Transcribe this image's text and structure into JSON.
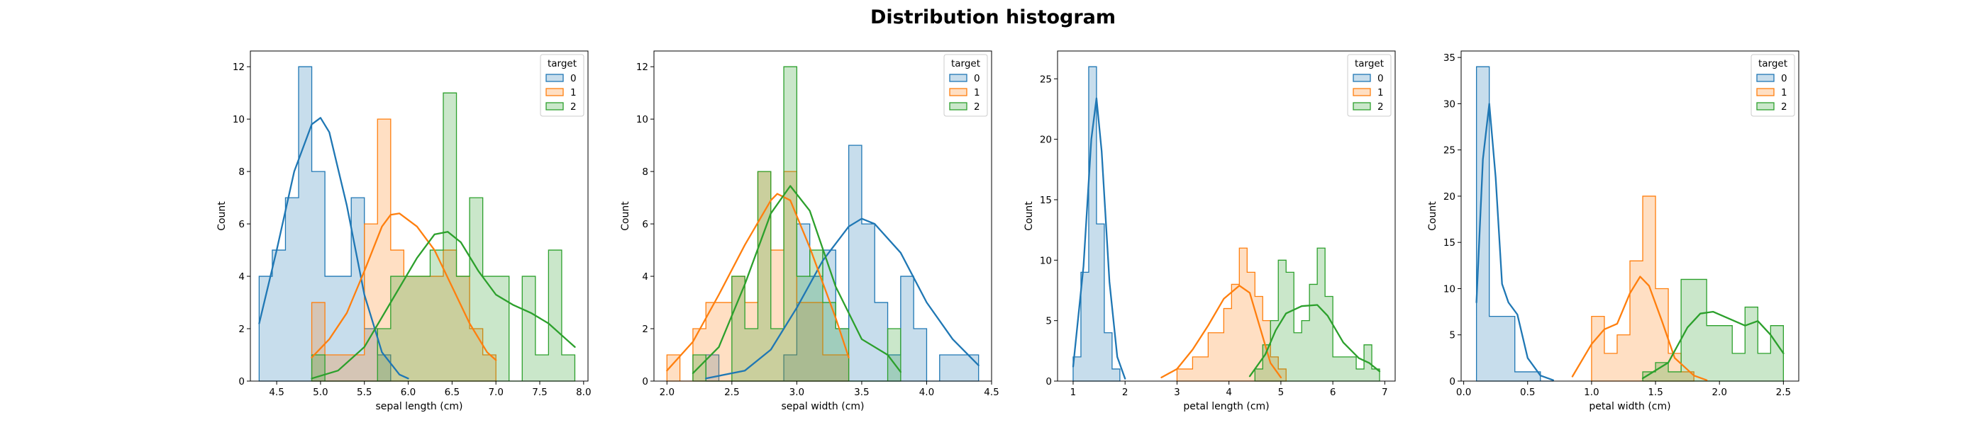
{
  "figure_title": "Distribution histogram",
  "colors": {
    "0": "#1f77b4",
    "1": "#ff7f0e",
    "2": "#2ca02c"
  },
  "chart_data": [
    {
      "type": "histogram",
      "xlabel": "sepal length (cm)",
      "ylabel": "Count",
      "xlim": [
        4.2,
        8.05
      ],
      "ylim": [
        0,
        12.6
      ],
      "xticks": [
        4.5,
        5.0,
        5.5,
        6.0,
        6.5,
        7.0,
        7.5,
        8.0
      ],
      "xtick_labels": [
        "4.5",
        "5.0",
        "5.5",
        "6.0",
        "6.5",
        "7.0",
        "7.5",
        "8.0"
      ],
      "yticks": [
        0,
        2,
        4,
        6,
        8,
        10,
        12
      ],
      "ytick_labels": [
        "0",
        "2",
        "4",
        "6",
        "8",
        "10",
        "12"
      ],
      "legend_title": "target",
      "legend_entries": [
        "0",
        "1",
        "2"
      ],
      "legend_position": "top-right",
      "series": [
        {
          "name": "0",
          "bins": [
            4.3,
            4.45,
            4.6,
            4.75,
            4.9,
            5.05,
            5.2,
            5.35,
            5.5,
            5.65,
            5.8
          ],
          "counts": [
            4,
            5,
            7,
            12,
            8,
            4,
            4,
            7,
            2,
            1
          ],
          "kde": [
            [
              4.3,
              2.2
            ],
            [
              4.5,
              5.0
            ],
            [
              4.7,
              8.0
            ],
            [
              4.9,
              9.8
            ],
            [
              5.0,
              10.05
            ],
            [
              5.1,
              9.5
            ],
            [
              5.3,
              6.7
            ],
            [
              5.5,
              3.3
            ],
            [
              5.7,
              1.1
            ],
            [
              5.9,
              0.25
            ],
            [
              6.0,
              0.1
            ]
          ]
        },
        {
          "name": "1",
          "bins": [
            4.9,
            5.05,
            5.2,
            5.35,
            5.5,
            5.65,
            5.8,
            5.95,
            6.1,
            6.25,
            6.4,
            6.55,
            6.7,
            6.85,
            7.0
          ],
          "counts": [
            3,
            1,
            1,
            1,
            6,
            10,
            5,
            4,
            4,
            4,
            5,
            4,
            2,
            1
          ],
          "kde": [
            [
              4.9,
              0.9
            ],
            [
              5.1,
              1.6
            ],
            [
              5.3,
              2.6
            ],
            [
              5.5,
              4.2
            ],
            [
              5.7,
              5.9
            ],
            [
              5.8,
              6.35
            ],
            [
              5.9,
              6.4
            ],
            [
              6.1,
              5.9
            ],
            [
              6.3,
              5.0
            ],
            [
              6.5,
              3.6
            ],
            [
              6.7,
              2.2
            ],
            [
              6.9,
              1.1
            ],
            [
              7.0,
              0.8
            ]
          ]
        },
        {
          "name": "2",
          "bins": [
            4.9,
            5.05,
            5.2,
            5.35,
            5.5,
            5.65,
            5.8,
            5.95,
            6.1,
            6.25,
            6.4,
            6.55,
            6.7,
            6.85,
            7.0,
            7.15,
            7.3,
            7.45,
            7.6,
            7.75,
            7.9
          ],
          "counts": [
            1,
            0,
            0,
            0,
            0,
            2,
            4,
            4,
            4,
            5,
            11,
            4,
            7,
            4,
            4,
            0,
            4,
            1,
            5,
            1
          ],
          "kde": [
            [
              4.9,
              0.1
            ],
            [
              5.2,
              0.4
            ],
            [
              5.5,
              1.3
            ],
            [
              5.8,
              3.0
            ],
            [
              6.1,
              4.7
            ],
            [
              6.3,
              5.6
            ],
            [
              6.45,
              5.7
            ],
            [
              6.6,
              5.3
            ],
            [
              6.8,
              4.2
            ],
            [
              7.0,
              3.3
            ],
            [
              7.2,
              2.9
            ],
            [
              7.4,
              2.6
            ],
            [
              7.6,
              2.2
            ],
            [
              7.8,
              1.6
            ],
            [
              7.9,
              1.3
            ]
          ]
        }
      ]
    },
    {
      "type": "histogram",
      "xlabel": "sepal width (cm)",
      "ylabel": "Count",
      "xlim": [
        1.9,
        4.5
      ],
      "ylim": [
        0,
        12.6
      ],
      "xticks": [
        2.0,
        2.5,
        3.0,
        3.5,
        4.0,
        4.5
      ],
      "xtick_labels": [
        "2.0",
        "2.5",
        "3.0",
        "3.5",
        "4.0",
        "4.5"
      ],
      "yticks": [
        0,
        2,
        4,
        6,
        8,
        10,
        12
      ],
      "ytick_labels": [
        "0",
        "2",
        "4",
        "6",
        "8",
        "10",
        "12"
      ],
      "legend_title": "target",
      "legend_entries": [
        "0",
        "1",
        "2"
      ],
      "legend_position": "top-right",
      "series": [
        {
          "name": "0",
          "bins": [
            2.3,
            2.4,
            2.5,
            2.6,
            2.7,
            2.8,
            2.9,
            3.0,
            3.1,
            3.2,
            3.3,
            3.4,
            3.5,
            3.6,
            3.7,
            3.8,
            3.9,
            4.0,
            4.1,
            4.2,
            4.3,
            4.4
          ],
          "counts": [
            1,
            0,
            0,
            0,
            0,
            0,
            1,
            6,
            4,
            5,
            2,
            9,
            6,
            3,
            1,
            4,
            2,
            0,
            1,
            1,
            1
          ],
          "kde": [
            [
              2.3,
              0.1
            ],
            [
              2.6,
              0.4
            ],
            [
              2.8,
              1.2
            ],
            [
              3.0,
              2.8
            ],
            [
              3.2,
              4.6
            ],
            [
              3.4,
              5.9
            ],
            [
              3.5,
              6.2
            ],
            [
              3.6,
              6.0
            ],
            [
              3.8,
              4.9
            ],
            [
              4.0,
              3.0
            ],
            [
              4.2,
              1.6
            ],
            [
              4.4,
              0.6
            ]
          ]
        },
        {
          "name": "1",
          "bins": [
            2.0,
            2.1,
            2.2,
            2.3,
            2.4,
            2.5,
            2.6,
            2.7,
            2.8,
            2.9,
            3.0,
            3.1,
            3.2,
            3.3,
            3.4
          ],
          "counts": [
            1,
            0,
            2,
            3,
            3,
            4,
            3,
            8,
            5,
            8,
            3,
            3,
            1,
            1
          ],
          "kde": [
            [
              2.0,
              0.4
            ],
            [
              2.2,
              1.5
            ],
            [
              2.4,
              3.3
            ],
            [
              2.6,
              5.2
            ],
            [
              2.8,
              6.9
            ],
            [
              2.85,
              7.15
            ],
            [
              2.95,
              6.9
            ],
            [
              3.1,
              5.1
            ],
            [
              3.3,
              2.4
            ],
            [
              3.4,
              0.9
            ]
          ]
        },
        {
          "name": "2",
          "bins": [
            2.2,
            2.3,
            2.4,
            2.5,
            2.6,
            2.7,
            2.8,
            2.9,
            3.0,
            3.1,
            3.2,
            3.3,
            3.4,
            3.5,
            3.6,
            3.7,
            3.8
          ],
          "counts": [
            1,
            0,
            0,
            4,
            2,
            8,
            2,
            12,
            4,
            5,
            3,
            2,
            0,
            0,
            0,
            2
          ],
          "kde": [
            [
              2.2,
              0.3
            ],
            [
              2.4,
              1.3
            ],
            [
              2.6,
              3.7
            ],
            [
              2.8,
              6.4
            ],
            [
              2.95,
              7.45
            ],
            [
              3.1,
              6.5
            ],
            [
              3.3,
              3.6
            ],
            [
              3.5,
              1.6
            ],
            [
              3.7,
              1.0
            ],
            [
              3.8,
              0.35
            ]
          ]
        }
      ]
    },
    {
      "type": "histogram",
      "xlabel": "petal length (cm)",
      "ylabel": "Count",
      "xlim": [
        0.7,
        7.2
      ],
      "ylim": [
        0,
        27.3
      ],
      "xticks": [
        1,
        2,
        3,
        4,
        5,
        6,
        7
      ],
      "xtick_labels": [
        "1",
        "2",
        "3",
        "4",
        "5",
        "6",
        "7"
      ],
      "yticks": [
        0,
        5,
        10,
        15,
        20,
        25
      ],
      "ytick_labels": [
        "0",
        "5",
        "10",
        "15",
        "20",
        "25"
      ],
      "legend_title": "target",
      "legend_entries": [
        "0",
        "1",
        "2"
      ],
      "legend_position": "top-right",
      "series": [
        {
          "name": "0",
          "bins": [
            1.0,
            1.15,
            1.3,
            1.45,
            1.6,
            1.75,
            1.9
          ],
          "counts": [
            2,
            9,
            26,
            13,
            4,
            1
          ],
          "kde": [
            [
              1.0,
              1.2
            ],
            [
              1.2,
              9.5
            ],
            [
              1.35,
              20.0
            ],
            [
              1.45,
              23.4
            ],
            [
              1.55,
              19.0
            ],
            [
              1.7,
              8.2
            ],
            [
              1.85,
              2.0
            ],
            [
              2.0,
              0.2
            ]
          ]
        },
        {
          "name": "1",
          "bins": [
            3.0,
            3.3,
            3.6,
            3.9,
            4.05,
            4.2,
            4.35,
            4.5,
            4.65,
            4.8,
            4.95,
            5.1
          ],
          "counts": [
            1,
            2,
            4,
            6,
            8,
            11,
            9,
            7,
            5,
            2,
            1
          ],
          "kde": [
            [
              2.7,
              0.3
            ],
            [
              3.0,
              1.0
            ],
            [
              3.3,
              2.6
            ],
            [
              3.6,
              4.6
            ],
            [
              3.9,
              6.8
            ],
            [
              4.2,
              7.9
            ],
            [
              4.4,
              7.3
            ],
            [
              4.6,
              4.4
            ],
            [
              4.8,
              1.5
            ],
            [
              5.0,
              0.3
            ]
          ]
        },
        {
          "name": "2",
          "bins": [
            4.5,
            4.65,
            4.8,
            4.95,
            5.1,
            5.25,
            5.4,
            5.55,
            5.7,
            5.85,
            6.0,
            6.15,
            6.3,
            6.45,
            6.6,
            6.75,
            6.9
          ],
          "counts": [
            1,
            3,
            5,
            10,
            9,
            4,
            5,
            8,
            11,
            7,
            2,
            2,
            2,
            1,
            3,
            1
          ],
          "kde": [
            [
              4.4,
              0.4
            ],
            [
              4.7,
              2.2
            ],
            [
              4.9,
              4.2
            ],
            [
              5.1,
              5.6
            ],
            [
              5.4,
              6.2
            ],
            [
              5.7,
              6.3
            ],
            [
              5.9,
              5.4
            ],
            [
              6.2,
              3.2
            ],
            [
              6.5,
              1.9
            ],
            [
              6.7,
              1.5
            ],
            [
              6.9,
              0.8
            ]
          ]
        }
      ]
    },
    {
      "type": "histogram",
      "xlabel": "petal width (cm)",
      "ylabel": "Count",
      "xlim": [
        -0.02,
        2.62
      ],
      "ylim": [
        0,
        35.7
      ],
      "xticks": [
        0.0,
        0.5,
        1.0,
        1.5,
        2.0,
        2.5
      ],
      "xtick_labels": [
        "0.0",
        "0.5",
        "1.0",
        "1.5",
        "2.0",
        "2.5"
      ],
      "yticks": [
        0,
        5,
        10,
        15,
        20,
        25,
        30,
        35
      ],
      "ytick_labels": [
        "0",
        "5",
        "10",
        "15",
        "20",
        "25",
        "30",
        "35"
      ],
      "legend_title": "target",
      "legend_entries": [
        "0",
        "1",
        "2"
      ],
      "legend_position": "top-right",
      "series": [
        {
          "name": "0",
          "bins": [
            0.1,
            0.2,
            0.3,
            0.4,
            0.5,
            0.6,
            0.7
          ],
          "counts": [
            34,
            7,
            7,
            1,
            1,
            0
          ],
          "kde": [
            [
              0.1,
              8.5
            ],
            [
              0.15,
              24.0
            ],
            [
              0.2,
              30.0
            ],
            [
              0.25,
              22.0
            ],
            [
              0.3,
              10.5
            ],
            [
              0.35,
              8.5
            ],
            [
              0.42,
              7.2
            ],
            [
              0.5,
              2.5
            ],
            [
              0.6,
              0.6
            ],
            [
              0.7,
              0.1
            ]
          ]
        },
        {
          "name": "1",
          "bins": [
            1.0,
            1.1,
            1.2,
            1.3,
            1.4,
            1.5,
            1.6,
            1.7,
            1.8
          ],
          "counts": [
            7,
            3,
            5,
            13,
            20,
            10,
            3,
            1
          ],
          "kde": [
            [
              0.85,
              0.5
            ],
            [
              1.0,
              4.0
            ],
            [
              1.1,
              5.6
            ],
            [
              1.2,
              6.2
            ],
            [
              1.3,
              9.5
            ],
            [
              1.38,
              11.3
            ],
            [
              1.45,
              10.3
            ],
            [
              1.55,
              6.5
            ],
            [
              1.65,
              2.5
            ],
            [
              1.8,
              0.6
            ],
            [
              1.9,
              0.1
            ]
          ]
        },
        {
          "name": "2",
          "bins": [
            1.4,
            1.5,
            1.6,
            1.7,
            1.8,
            1.9,
            2.0,
            2.1,
            2.2,
            2.3,
            2.4,
            2.5
          ],
          "counts": [
            1,
            2,
            1,
            11,
            11,
            6,
            6,
            3,
            8,
            3,
            6
          ],
          "kde": [
            [
              1.4,
              0.3
            ],
            [
              1.6,
              2.0
            ],
            [
              1.75,
              5.8
            ],
            [
              1.85,
              7.3
            ],
            [
              1.95,
              7.5
            ],
            [
              2.1,
              6.6
            ],
            [
              2.2,
              6.0
            ],
            [
              2.3,
              6.5
            ],
            [
              2.4,
              5.0
            ],
            [
              2.5,
              3.0
            ]
          ]
        }
      ]
    }
  ]
}
